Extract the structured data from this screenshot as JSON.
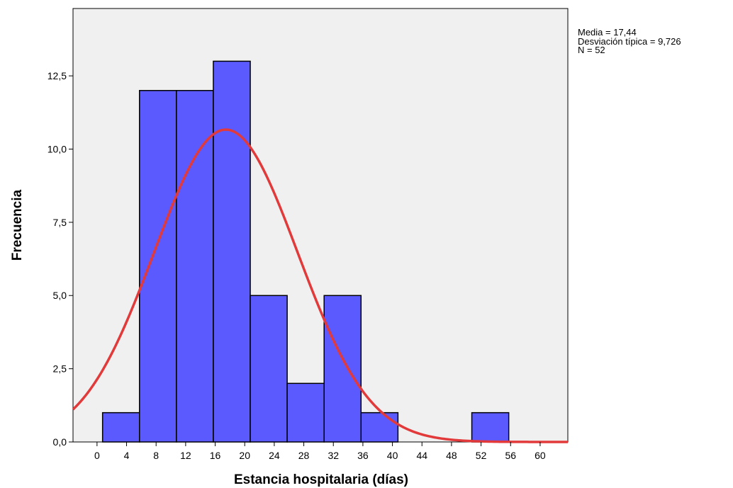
{
  "chart_data": {
    "type": "bar",
    "title": "",
    "xlabel": "Estancia hospitalaria (días)",
    "ylabel": "Frecuencia",
    "bins": [
      {
        "from": 0.75,
        "to": 5.75,
        "count": 1
      },
      {
        "from": 5.75,
        "to": 10.75,
        "count": 12
      },
      {
        "from": 10.75,
        "to": 15.75,
        "count": 12
      },
      {
        "from": 15.75,
        "to": 20.75,
        "count": 13
      },
      {
        "from": 20.75,
        "to": 25.75,
        "count": 5
      },
      {
        "from": 25.75,
        "to": 30.75,
        "count": 2
      },
      {
        "from": 30.75,
        "to": 35.75,
        "count": 5
      },
      {
        "from": 35.75,
        "to": 40.75,
        "count": 1
      },
      {
        "from": 40.75,
        "to": 45.75,
        "count": 0
      },
      {
        "from": 45.75,
        "to": 50.75,
        "count": 0
      },
      {
        "from": 50.75,
        "to": 55.75,
        "count": 1
      }
    ],
    "xlim": [
      -3.25,
      63.75
    ],
    "ylim": [
      0,
      14.8
    ],
    "xticks": [
      "0",
      "4",
      "8",
      "12",
      "16",
      "20",
      "24",
      "28",
      "32",
      "36",
      "40",
      "44",
      "48",
      "52",
      "56",
      "60"
    ],
    "yticks": [
      "0,0",
      "2,5",
      "5,0",
      "7,5",
      "10,0",
      "12,5"
    ],
    "normal_curve": {
      "mean": 17.44,
      "sd": 9.726,
      "n": 52,
      "bin_width": 5,
      "color": "#e23a3a"
    },
    "bar_color": "#5a5aff",
    "plot_background": "#f0f0f0",
    "grid": false
  },
  "stats": {
    "mean_text": "Media = 17,44",
    "sd_text": "Desviación típica = 9,726",
    "n_text": "N = 52"
  }
}
